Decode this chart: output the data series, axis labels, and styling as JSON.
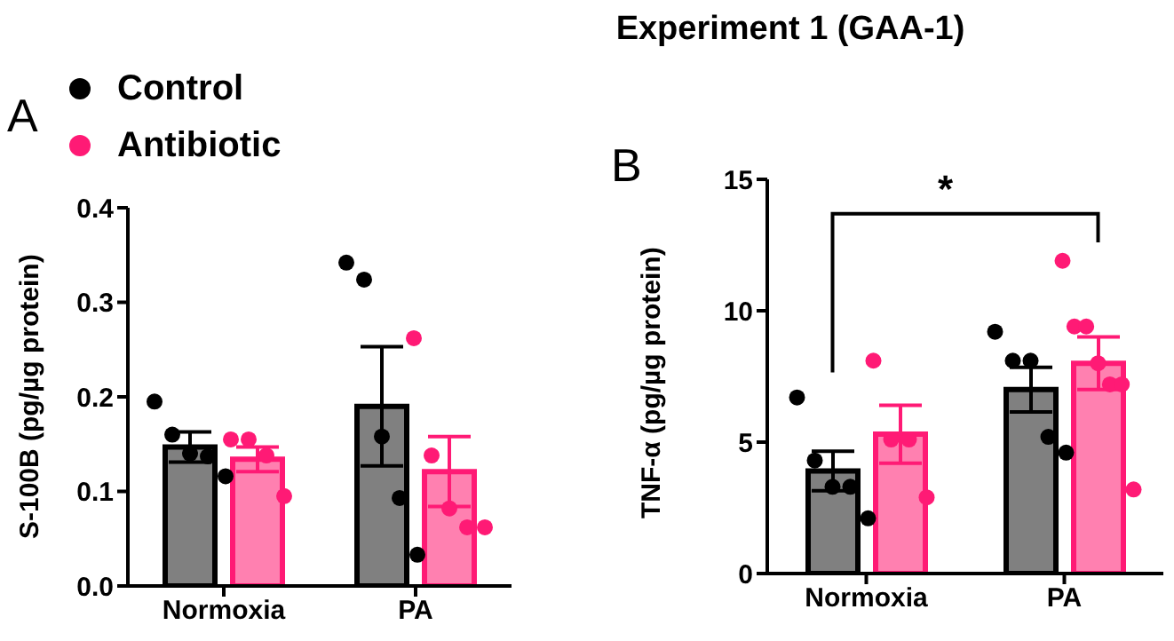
{
  "chart_data": [
    {
      "type": "bar",
      "categories": [
        "Normoxia",
        "PA"
      ],
      "ylabel": "S-100B (pg/µg protein)",
      "annotations": [
        "A"
      ],
      "legend": "top left",
      "ylim": [
        0,
        0.4
      ],
      "yticks": [
        {
          "value": 0,
          "label": "0.0"
        },
        0.1,
        0.2,
        0.3,
        0.4
      ],
      "series": [
        {
          "type": "bar",
          "color": "#808080",
          "values": [
            0.147,
            0.19
          ],
          "errors": [
            0.016,
            0.063
          ]
        },
        {
          "type": "bar",
          "color": "#ff80b0",
          "values": [
            0.134,
            0.121
          ],
          "errors": [
            0.013,
            0.037
          ]
        },
        {
          "type": "scatter",
          "name": "Control",
          "color": "#000000",
          "x": [
            "Normoxia",
            "Normoxia",
            "Normoxia",
            "Normoxia",
            "Normoxia",
            "PA",
            "PA",
            "PA",
            "PA",
            "PA"
          ],
          "values": [
            0.195,
            0.16,
            0.14,
            0.137,
            0.116,
            0.342,
            0.324,
            0.158,
            0.093,
            0.033
          ]
        },
        {
          "type": "scatter",
          "name": "Antibiotic",
          "color": "#ff1a75",
          "x": [
            "Normoxia",
            "Normoxia",
            "Normoxia",
            "Normoxia",
            "PA",
            "PA",
            "PA",
            "PA",
            "PA"
          ],
          "values": [
            0.155,
            0.155,
            0.138,
            0.095,
            0.262,
            0.138,
            0.082,
            0.062,
            0.062
          ]
        }
      ]
    },
    {
      "type": "bar",
      "title": "Experiment 1 (GAA-1)",
      "categories": [
        "Normoxia",
        "PA"
      ],
      "ylabel": "TNF-α (pg/µg protein)",
      "annotations": [
        "B",
        "*"
      ],
      "ylim": [
        0,
        15
      ],
      "yticks": [
        0,
        5,
        10,
        15
      ],
      "series": [
        {
          "type": "bar",
          "color": "#808080",
          "values": [
            3.9,
            7.0
          ],
          "errors": [
            0.75,
            0.85
          ]
        },
        {
          "type": "bar",
          "color": "#ff80b0",
          "values": [
            5.3,
            8.0
          ],
          "errors": [
            1.1,
            1.0
          ]
        },
        {
          "type": "scatter",
          "color": "#000000",
          "x": [
            "Normoxia",
            "Normoxia",
            "Normoxia",
            "Normoxia",
            "Normoxia",
            "PA",
            "PA",
            "PA",
            "PA",
            "PA"
          ],
          "values": [
            6.7,
            4.3,
            3.3,
            3.3,
            2.1,
            9.2,
            8.1,
            8.1,
            5.2,
            4.6
          ]
        },
        {
          "type": "scatter",
          "color": "#ff1a75",
          "x": [
            "Normoxia",
            "Normoxia",
            "Normoxia",
            "Normoxia",
            "PA",
            "PA",
            "PA",
            "PA",
            "PA",
            "PA",
            "PA"
          ],
          "values": [
            8.1,
            5.1,
            5.1,
            2.9,
            11.9,
            9.4,
            9.4,
            8.0,
            7.2,
            7.2,
            3.2
          ]
        }
      ]
    }
  ]
}
